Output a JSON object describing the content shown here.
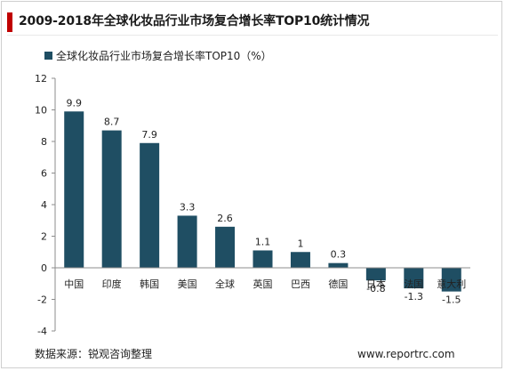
{
  "header": {
    "title": "2009-2018年全球化妆品行业市场复合增长率TOP10统计情况",
    "accent_color": "#c00000"
  },
  "footer": {
    "source": "数据来源：锐观咨询整理",
    "website": "www.reportrc.com"
  },
  "chart_data": {
    "type": "bar",
    "categories": [
      "中国",
      "印度",
      "韩国",
      "美国",
      "全球",
      "英国",
      "巴西",
      "德国",
      "日本",
      "法国",
      "意大利"
    ],
    "series": [
      {
        "name": "全球化妆品行业市场复合增长率TOP10（%）",
        "values": [
          9.9,
          8.7,
          7.9,
          3.3,
          2.6,
          1.1,
          1,
          0.3,
          -0.8,
          -1.3,
          -1.5
        ],
        "labels": [
          "9.9",
          "8.7",
          "7.9",
          "3.3",
          "2.6",
          "1.1",
          "1",
          "0.3",
          "-0.8",
          "-1.3",
          "-1.5"
        ]
      }
    ],
    "ylim": [
      -4,
      12
    ],
    "yticks": [
      "-4",
      "-2",
      "0",
      "2",
      "4",
      "6",
      "8",
      "10",
      "12"
    ],
    "legend_position": "top-left",
    "grid": false,
    "bar_color": "#1f4e63"
  }
}
